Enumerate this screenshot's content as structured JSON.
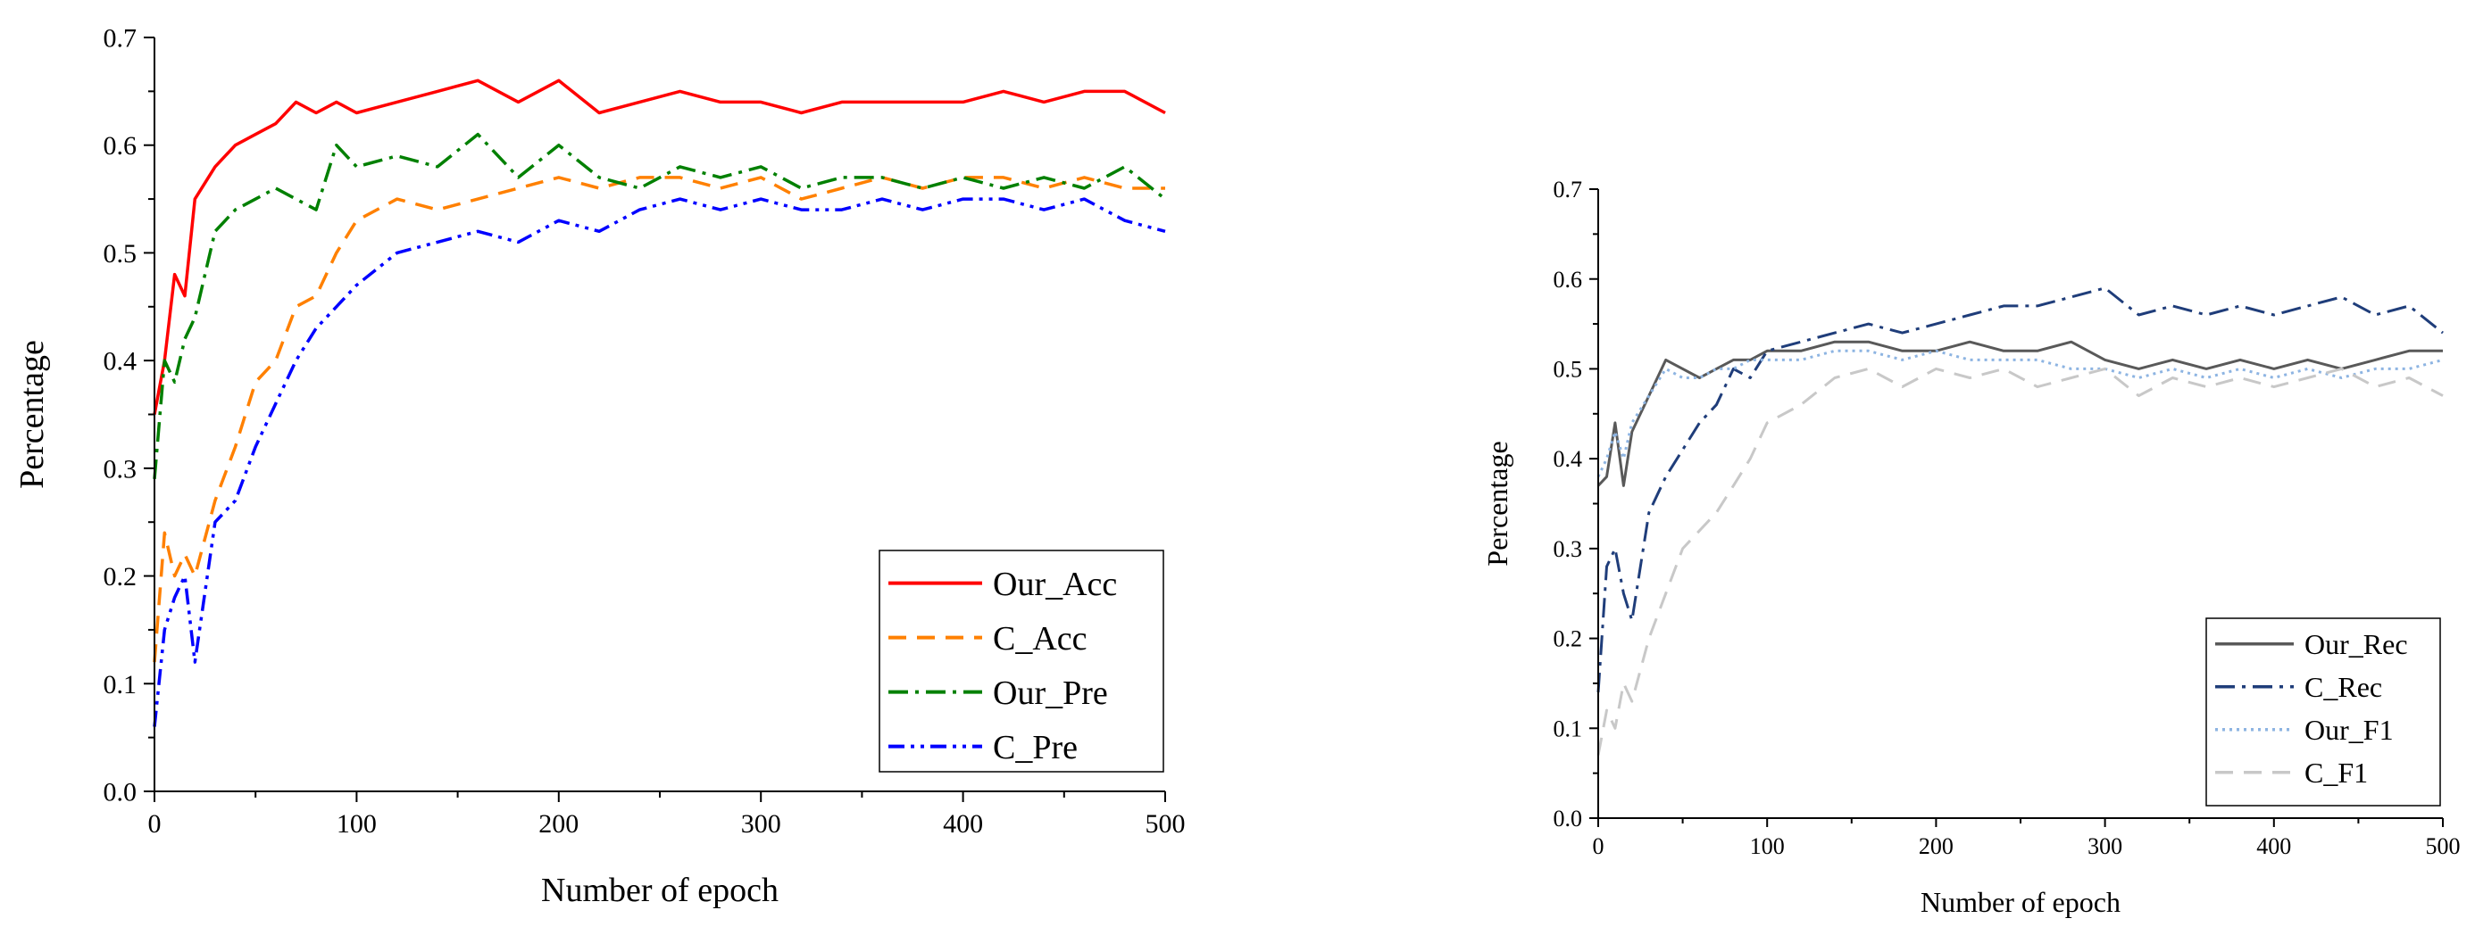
{
  "chart_data": [
    {
      "type": "line",
      "xlabel": "Number of epoch",
      "ylabel": "Percentage",
      "xlim": [
        0,
        500
      ],
      "ylim": [
        0.0,
        0.7
      ],
      "x_ticks": [
        "0",
        "100",
        "200",
        "300",
        "400",
        "500"
      ],
      "y_ticks": [
        "0.0",
        "0.1",
        "0.2",
        "0.3",
        "0.4",
        "0.5",
        "0.6",
        "0.7"
      ],
      "legend_position": "bottom-right",
      "series": [
        {
          "name": "Our_Acc",
          "color": "#ff0000",
          "style": "solid",
          "x": [
            0,
            5,
            10,
            15,
            20,
            30,
            40,
            50,
            60,
            70,
            80,
            90,
            100,
            120,
            140,
            160,
            180,
            200,
            220,
            240,
            260,
            280,
            300,
            320,
            340,
            360,
            380,
            400,
            420,
            440,
            460,
            480,
            500
          ],
          "values": [
            0.35,
            0.4,
            0.48,
            0.46,
            0.55,
            0.58,
            0.6,
            0.61,
            0.62,
            0.64,
            0.63,
            0.64,
            0.63,
            0.64,
            0.65,
            0.66,
            0.64,
            0.66,
            0.63,
            0.64,
            0.65,
            0.64,
            0.64,
            0.63,
            0.64,
            0.64,
            0.64,
            0.64,
            0.65,
            0.64,
            0.65,
            0.65,
            0.63
          ]
        },
        {
          "name": "C_Acc",
          "color": "#ff8000",
          "style": "dashed",
          "x": [
            0,
            5,
            10,
            15,
            20,
            30,
            40,
            50,
            60,
            70,
            80,
            90,
            100,
            120,
            140,
            160,
            180,
            200,
            220,
            240,
            260,
            280,
            300,
            320,
            340,
            360,
            380,
            400,
            420,
            440,
            460,
            480,
            500
          ],
          "values": [
            0.12,
            0.24,
            0.2,
            0.22,
            0.2,
            0.27,
            0.32,
            0.38,
            0.4,
            0.45,
            0.46,
            0.5,
            0.53,
            0.55,
            0.54,
            0.55,
            0.56,
            0.57,
            0.56,
            0.57,
            0.57,
            0.56,
            0.57,
            0.55,
            0.56,
            0.57,
            0.56,
            0.57,
            0.57,
            0.56,
            0.57,
            0.56,
            0.56
          ]
        },
        {
          "name": "Our_Pre",
          "color": "#008000",
          "style": "dash-dot",
          "x": [
            0,
            5,
            10,
            15,
            20,
            30,
            40,
            50,
            60,
            70,
            80,
            90,
            100,
            120,
            140,
            160,
            180,
            200,
            220,
            240,
            260,
            280,
            300,
            320,
            340,
            360,
            380,
            400,
            420,
            440,
            460,
            480,
            500
          ],
          "values": [
            0.29,
            0.4,
            0.38,
            0.42,
            0.44,
            0.52,
            0.54,
            0.55,
            0.56,
            0.55,
            0.54,
            0.6,
            0.58,
            0.59,
            0.58,
            0.61,
            0.57,
            0.6,
            0.57,
            0.56,
            0.58,
            0.57,
            0.58,
            0.56,
            0.57,
            0.57,
            0.56,
            0.57,
            0.56,
            0.57,
            0.56,
            0.58,
            0.55
          ]
        },
        {
          "name": "C_Pre",
          "color": "#0000ff",
          "style": "dash-dot-dot",
          "x": [
            0,
            5,
            10,
            15,
            20,
            30,
            40,
            50,
            60,
            70,
            80,
            90,
            100,
            120,
            140,
            160,
            180,
            200,
            220,
            240,
            260,
            280,
            300,
            320,
            340,
            360,
            380,
            400,
            420,
            440,
            460,
            480,
            500
          ],
          "values": [
            0.06,
            0.15,
            0.18,
            0.2,
            0.12,
            0.25,
            0.27,
            0.32,
            0.36,
            0.4,
            0.43,
            0.45,
            0.47,
            0.5,
            0.51,
            0.52,
            0.51,
            0.53,
            0.52,
            0.54,
            0.55,
            0.54,
            0.55,
            0.54,
            0.54,
            0.55,
            0.54,
            0.55,
            0.55,
            0.54,
            0.55,
            0.53,
            0.52
          ]
        }
      ]
    },
    {
      "type": "line",
      "xlabel": "Number of epoch",
      "ylabel": "Percentage",
      "xlim": [
        0,
        500
      ],
      "ylim": [
        0.0,
        0.7
      ],
      "x_ticks": [
        "0",
        "100",
        "200",
        "300",
        "400",
        "500"
      ],
      "y_ticks": [
        "0.0",
        "0.1",
        "0.2",
        "0.3",
        "0.4",
        "0.5",
        "0.6",
        "0.7"
      ],
      "legend_position": "bottom-right",
      "series": [
        {
          "name": "Our_Rec",
          "color": "#595959",
          "style": "solid",
          "x": [
            0,
            5,
            10,
            15,
            20,
            30,
            40,
            50,
            60,
            70,
            80,
            90,
            100,
            120,
            140,
            160,
            180,
            200,
            220,
            240,
            260,
            280,
            300,
            320,
            340,
            360,
            380,
            400,
            420,
            440,
            460,
            480,
            500
          ],
          "values": [
            0.37,
            0.38,
            0.44,
            0.37,
            0.43,
            0.47,
            0.51,
            0.5,
            0.49,
            0.5,
            0.51,
            0.51,
            0.52,
            0.52,
            0.53,
            0.53,
            0.52,
            0.52,
            0.53,
            0.52,
            0.52,
            0.53,
            0.51,
            0.5,
            0.51,
            0.5,
            0.51,
            0.5,
            0.51,
            0.5,
            0.51,
            0.52,
            0.52
          ]
        },
        {
          "name": "C_Rec",
          "color": "#1f3d7a",
          "style": "dash-dot",
          "x": [
            0,
            5,
            10,
            15,
            20,
            30,
            40,
            50,
            60,
            70,
            80,
            90,
            100,
            120,
            140,
            160,
            180,
            200,
            220,
            240,
            260,
            280,
            300,
            320,
            340,
            360,
            380,
            400,
            420,
            440,
            460,
            480,
            500
          ],
          "values": [
            0.14,
            0.28,
            0.3,
            0.25,
            0.22,
            0.34,
            0.38,
            0.41,
            0.44,
            0.46,
            0.5,
            0.49,
            0.52,
            0.53,
            0.54,
            0.55,
            0.54,
            0.55,
            0.56,
            0.57,
            0.57,
            0.58,
            0.59,
            0.56,
            0.57,
            0.56,
            0.57,
            0.56,
            0.57,
            0.58,
            0.56,
            0.57,
            0.54
          ]
        },
        {
          "name": "Our_F1",
          "color": "#8db4e2",
          "style": "dotted",
          "x": [
            0,
            5,
            10,
            15,
            20,
            30,
            40,
            50,
            60,
            70,
            80,
            90,
            100,
            120,
            140,
            160,
            180,
            200,
            220,
            240,
            260,
            280,
            300,
            320,
            340,
            360,
            380,
            400,
            420,
            440,
            460,
            480,
            500
          ],
          "values": [
            0.38,
            0.4,
            0.43,
            0.4,
            0.44,
            0.47,
            0.5,
            0.49,
            0.49,
            0.5,
            0.5,
            0.51,
            0.51,
            0.51,
            0.52,
            0.52,
            0.51,
            0.52,
            0.51,
            0.51,
            0.51,
            0.5,
            0.5,
            0.49,
            0.5,
            0.49,
            0.5,
            0.49,
            0.5,
            0.49,
            0.5,
            0.5,
            0.51
          ]
        },
        {
          "name": "C_F1",
          "color": "#c8c8c8",
          "style": "dashed",
          "x": [
            0,
            5,
            10,
            15,
            20,
            30,
            40,
            50,
            60,
            70,
            80,
            90,
            100,
            120,
            140,
            160,
            180,
            200,
            220,
            240,
            260,
            280,
            300,
            320,
            340,
            360,
            380,
            400,
            420,
            440,
            460,
            480,
            500
          ],
          "values": [
            0.07,
            0.12,
            0.1,
            0.15,
            0.13,
            0.2,
            0.25,
            0.3,
            0.32,
            0.34,
            0.37,
            0.4,
            0.44,
            0.46,
            0.49,
            0.5,
            0.48,
            0.5,
            0.49,
            0.5,
            0.48,
            0.49,
            0.5,
            0.47,
            0.49,
            0.48,
            0.49,
            0.48,
            0.49,
            0.5,
            0.48,
            0.49,
            0.47
          ]
        }
      ]
    }
  ]
}
